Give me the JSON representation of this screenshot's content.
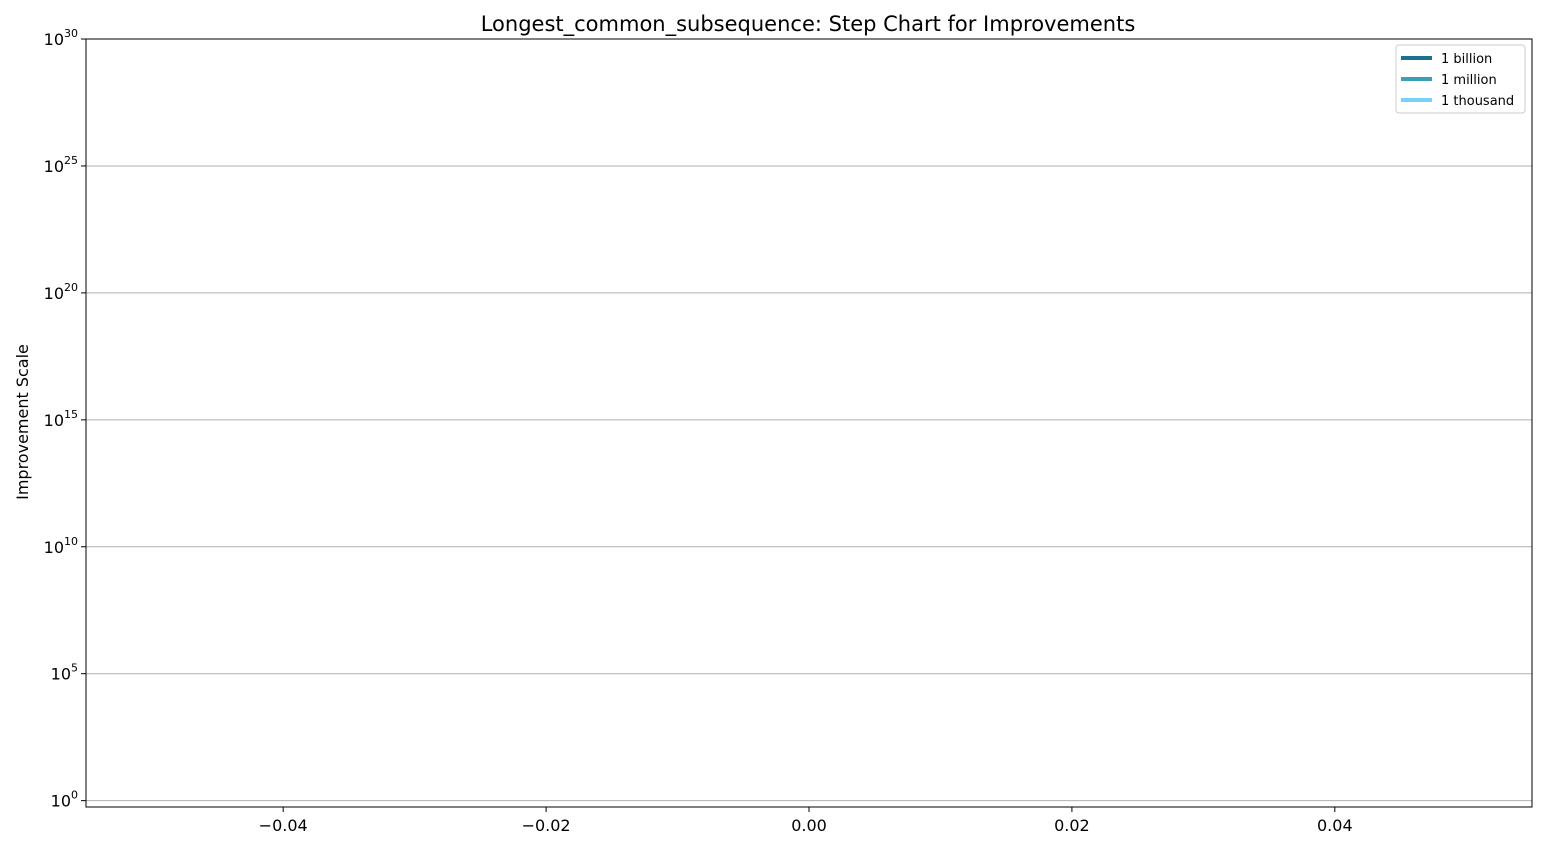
{
  "chart_data": {
    "type": "line",
    "title": "Longest_common_subsequence: Step Chart for Improvements",
    "xlabel": "",
    "ylabel": "Improvement Scale",
    "xlim": [
      -0.055,
      0.055
    ],
    "x_ticks": [
      -0.04,
      -0.02,
      0.0,
      0.02,
      0.04
    ],
    "x_tick_labels": [
      "−0.04",
      "−0.02",
      "0.00",
      "0.02",
      "0.04"
    ],
    "y_scale": "log",
    "ylim_exponent": [
      -0.25,
      30
    ],
    "y_ticks": [
      {
        "base": "10",
        "exp": "0",
        "value": 1
      },
      {
        "base": "10",
        "exp": "5",
        "value": 100000.0
      },
      {
        "base": "10",
        "exp": "10",
        "value": 10000000000.0
      },
      {
        "base": "10",
        "exp": "15",
        "value": 1000000000000000.0
      },
      {
        "base": "10",
        "exp": "20",
        "value": 1e+20
      },
      {
        "base": "10",
        "exp": "25",
        "value": 1e+25
      },
      {
        "base": "10",
        "exp": "30",
        "value": 1e+30
      }
    ],
    "grid": "y-major",
    "legend_position": "top-right",
    "series": [
      {
        "name": "1 billion",
        "color": "#1b6f8f",
        "values": []
      },
      {
        "name": "1 million",
        "color": "#3a9fb8",
        "values": []
      },
      {
        "name": "1 thousand",
        "color": "#76d1f7",
        "values": []
      }
    ]
  }
}
